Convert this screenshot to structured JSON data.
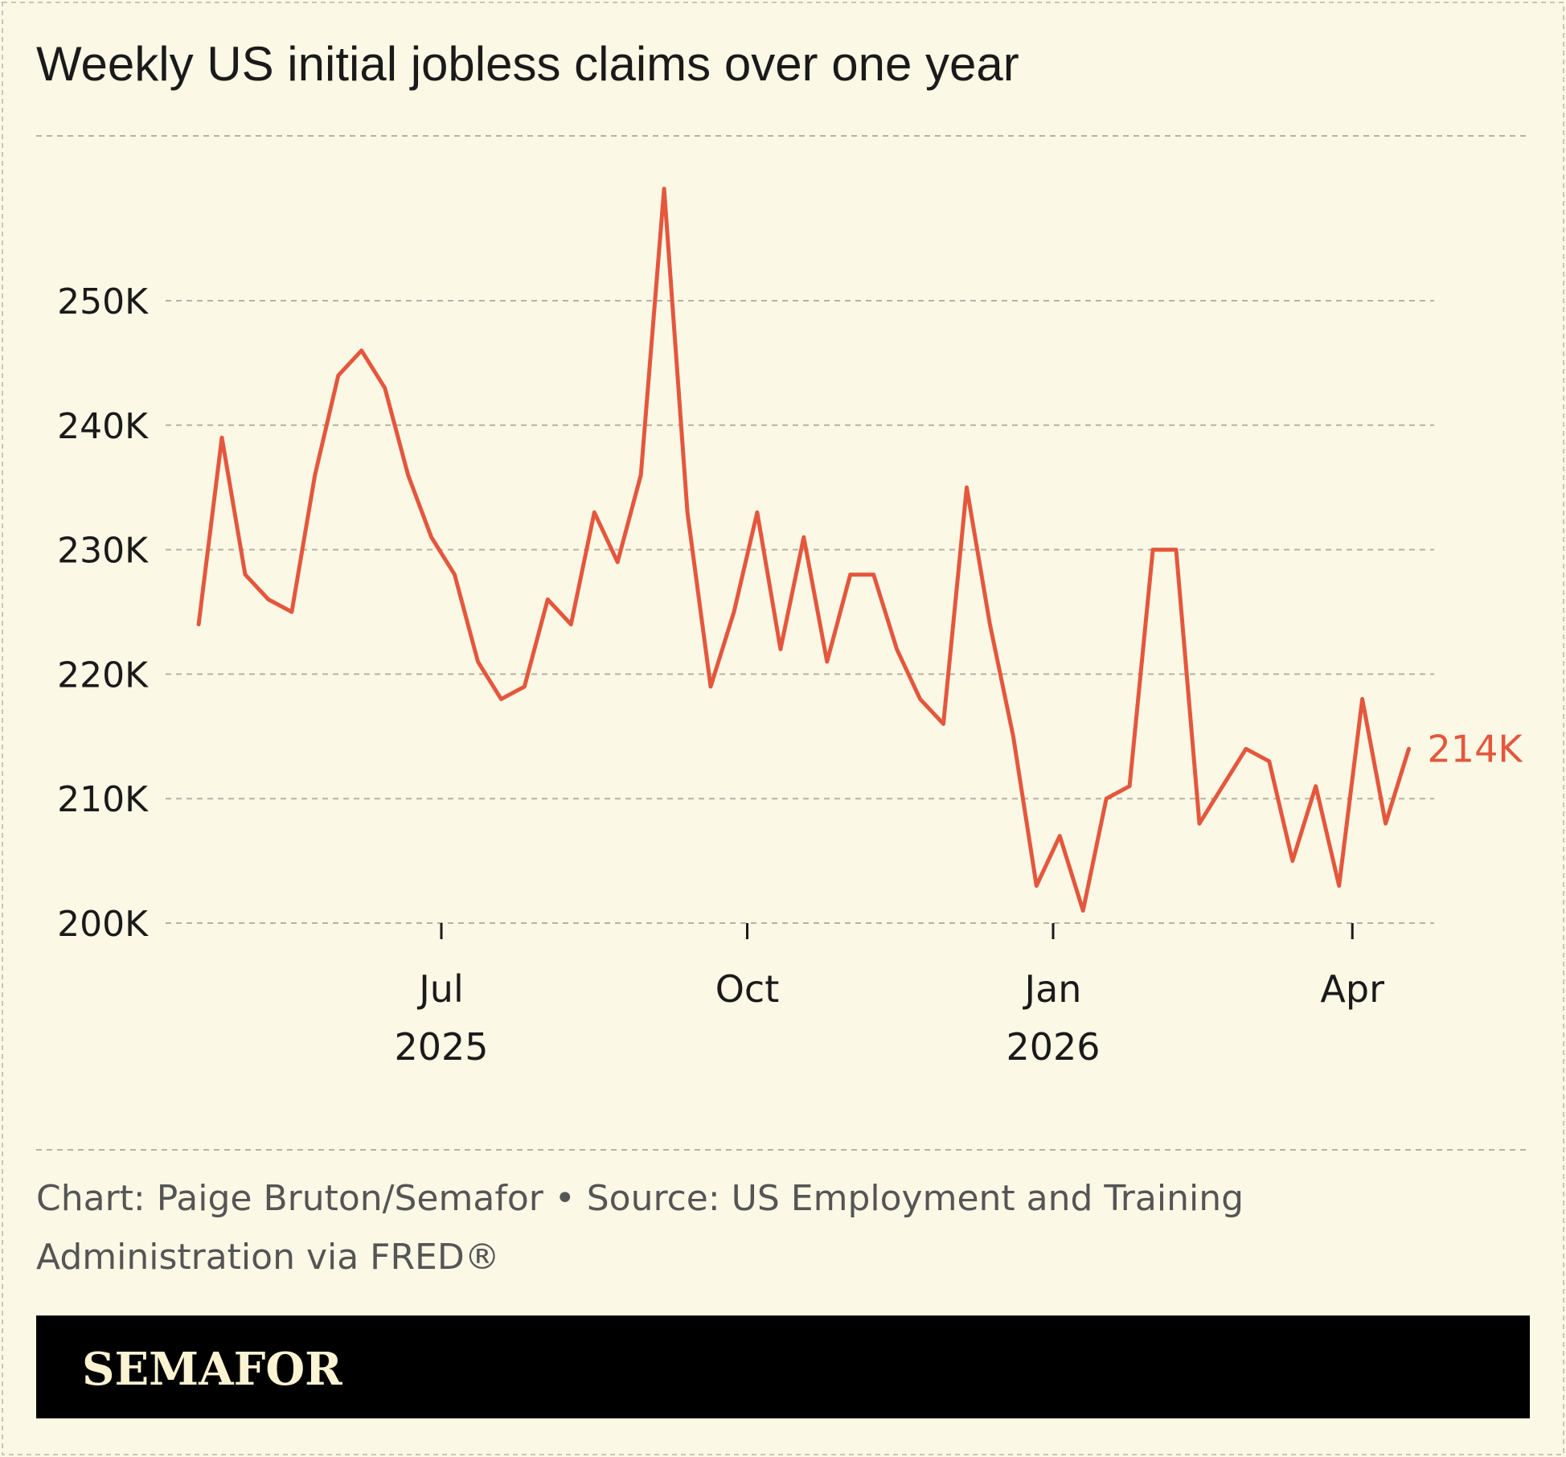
{
  "chart_data": {
    "type": "line",
    "title": "Weekly US initial jobless claims over one year",
    "xlabel": "",
    "ylabel": "",
    "ylim": [
      200000,
      260000
    ],
    "grid": true,
    "yticks": [
      {
        "value": 200000,
        "label": "200K"
      },
      {
        "value": 210000,
        "label": "210K"
      },
      {
        "value": 220000,
        "label": "220K"
      },
      {
        "value": 230000,
        "label": "230K"
      },
      {
        "value": 240000,
        "label": "240K"
      },
      {
        "value": 250000,
        "label": "250K"
      }
    ],
    "xticks": [
      {
        "date": "2025-07-01",
        "label": "Jul",
        "year": "2025"
      },
      {
        "date": "2025-10-01",
        "label": "Oct",
        "year": ""
      },
      {
        "date": "2026-01-01",
        "label": "Jan",
        "year": "2026"
      },
      {
        "date": "2026-04-01",
        "label": "Apr",
        "year": ""
      }
    ],
    "start_date": "2025-04-19",
    "interval": "weekly",
    "values": [
      224000,
      239000,
      228000,
      226000,
      225000,
      236000,
      244000,
      246000,
      243000,
      236000,
      231000,
      228000,
      221000,
      218000,
      219000,
      226000,
      224000,
      233000,
      229000,
      236000,
      259000,
      233000,
      219000,
      225000,
      233000,
      222000,
      231000,
      221000,
      228000,
      228000,
      222000,
      218000,
      216000,
      235000,
      224000,
      215000,
      203000,
      207000,
      201000,
      210000,
      211000,
      230000,
      230000,
      208000,
      211000,
      214000,
      213000,
      205000,
      211000,
      203000,
      218000,
      208000,
      214000
    ],
    "end_label": "214K",
    "line_color": "#e4573d"
  },
  "footer": {
    "source_line1": "Chart: Paige Bruton/Semafor • Source: US Employment and Training",
    "source_line2": "Administration via FRED®",
    "logo": "SEMAFOR"
  },
  "colors": {
    "background": "#fcf8e6",
    "grid": "#b5b2a6",
    "logo_bar": "#000000"
  }
}
